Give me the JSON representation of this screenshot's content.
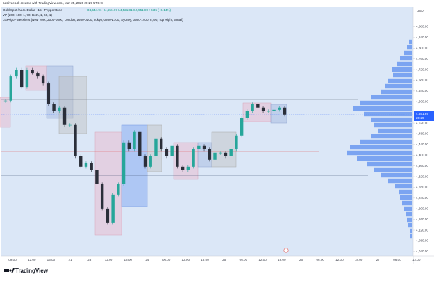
{
  "header": {
    "credit": "bdsliveeo4k created with TradingView.com, Mar 25, 2026 20:29 UTC+8",
    "symbol": "Gold Spot / U.S. Dollar · 15 · Pepperstone",
    "ohlc": "O4,544.91 H4,556.67 L4,521.81 C4,551.89 +6.35 (+0.14%)",
    "indicator_vp": "VP (200, 100, 1, 70, Both, 1, 60, 1)",
    "indicator_sessions": "LuxAlgo - Sessions (New York, 2000-0500, London, 1600-0100, Tokyo, 0800-1700, Sydney, 0500-1400, 8, 90, Top Right, Small)"
  },
  "chart_data": {
    "type": "candlestick",
    "currency": "USD",
    "last_price": {
      "value": 4551.89,
      "label": "4,551.89"
    },
    "countdown": "20:29",
    "closes": [
      4604,
      4694,
      4720,
      4655,
      4720,
      4707,
      4694,
      4668,
      4591,
      4565,
      4578,
      4513,
      4513,
      4396,
      4357,
      4370,
      4344,
      4292,
      4201,
      4149,
      4253,
      4292,
      4448,
      4422,
      4487,
      4396,
      4357,
      4396,
      4461,
      4422,
      4396,
      4435,
      4357,
      4344,
      4357,
      4422,
      4435,
      4422,
      4383,
      4409,
      4409,
      4396,
      4422,
      4474,
      4539,
      4565,
      4591,
      4578,
      4565,
      4565,
      4570,
      4578,
      4552
    ],
    "up_color": "#26a69a",
    "down_color": "#2a2e39",
    "ylim": [
      4024,
      4954
    ],
    "yticks": [
      {
        "value": 4880,
        "label": "4,880.00"
      },
      {
        "value": 4840,
        "label": "4,840.00"
      },
      {
        "value": 4800,
        "label": "4,800.00"
      },
      {
        "value": 4760,
        "label": "4,760.00"
      },
      {
        "value": 4720,
        "label": "4,720.00"
      },
      {
        "value": 4680,
        "label": "4,680.00"
      },
      {
        "value": 4640,
        "label": "4,640.00"
      },
      {
        "value": 4600,
        "label": "4,600.00"
      },
      {
        "value": 4520,
        "label": "4,520.00"
      },
      {
        "value": 4480,
        "label": "4,480.00"
      },
      {
        "value": 4440,
        "label": "4,440.00"
      },
      {
        "value": 4400,
        "label": "4,400.00"
      },
      {
        "value": 4360,
        "label": "4,360.00"
      },
      {
        "value": 4320,
        "label": "4,320.00"
      },
      {
        "value": 4280,
        "label": "4,280.00"
      },
      {
        "value": 4240,
        "label": "4,240.00"
      },
      {
        "value": 4200,
        "label": "4,200.00"
      },
      {
        "value": 4160,
        "label": "4,160.00"
      },
      {
        "value": 4120,
        "label": "4,120.00"
      },
      {
        "value": 4080,
        "label": "4,080.00"
      },
      {
        "value": 4040,
        "label": "4,040.00"
      }
    ],
    "x_labels": [
      "09:00",
      "12:00",
      "15:00",
      "21",
      "23",
      "12:00",
      "18:00",
      "24",
      "06:00",
      "12:00",
      "18:00",
      "25",
      "06:00",
      "12:00",
      "18:00",
      "26",
      "06:00",
      "12:00",
      "18:00",
      "27",
      "06:00",
      "12:00"
    ],
    "volume_profile": [
      5,
      8,
      12,
      18,
      22,
      30,
      28,
      35,
      40,
      45,
      60,
      75,
      85,
      70,
      60,
      55,
      50,
      60,
      75,
      90,
      95,
      80,
      65,
      55,
      45,
      35,
      25,
      20,
      18,
      15,
      12,
      10,
      8,
      6,
      4,
      3
    ],
    "volume_color": "#5b8def"
  },
  "footer": {
    "brand": "TradingView"
  }
}
